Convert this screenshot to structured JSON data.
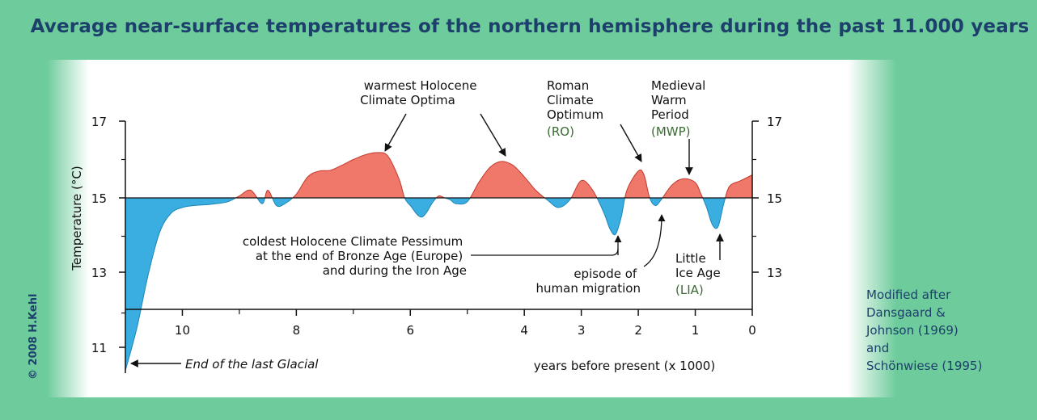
{
  "title": "Average near-surface temperatures of the northern hemisphere during the past 11.000 years",
  "copyright": "© 2008 H.Kehl",
  "source": [
    "Modified after",
    "Dansgaard &",
    "Johnson (1969)",
    "and",
    "Schönwiese (1995)"
  ],
  "colors": {
    "warm": "#f0786a",
    "cold": "#3aaee0",
    "axis": "#111111",
    "background": "#6ecc9c",
    "title": "#1d3f6b"
  },
  "chart_data": {
    "type": "area",
    "ylabel": "Temperature (°C)",
    "xlabel": "years before present (x 1000)",
    "xlim": [
      11,
      0
    ],
    "ylim": [
      10.8,
      17.3
    ],
    "baseline": 15,
    "x_ticks": [
      "10",
      "8",
      "6",
      "4",
      "3",
      "2",
      "1",
      "0"
    ],
    "y_ticks_left": [
      "17",
      "15",
      "13",
      "11"
    ],
    "y_ticks_right": [
      "17",
      "15",
      "13"
    ],
    "x": [
      11.0,
      10.8,
      10.6,
      10.4,
      10.2,
      10.0,
      9.8,
      9.6,
      9.4,
      9.2,
      9.0,
      8.8,
      8.6,
      8.5,
      8.35,
      8.2,
      8.0,
      7.8,
      7.6,
      7.4,
      7.2,
      7.0,
      6.8,
      6.6,
      6.4,
      6.2,
      6.1,
      6.0,
      5.8,
      5.6,
      5.5,
      5.4,
      5.3,
      5.2,
      5.0,
      4.8,
      4.6,
      4.4,
      4.2,
      4.0,
      3.8,
      3.6,
      3.4,
      3.2,
      3.0,
      2.8,
      2.6,
      2.5,
      2.4,
      2.3,
      2.2,
      2.0,
      1.9,
      1.8,
      1.7,
      1.6,
      1.4,
      1.2,
      1.0,
      0.9,
      0.8,
      0.7,
      0.6,
      0.5,
      0.4,
      0.2,
      0.0
    ],
    "y": [
      10.5,
      11.6,
      13.0,
      14.1,
      14.6,
      14.75,
      14.8,
      14.82,
      14.85,
      14.9,
      15.05,
      15.2,
      14.85,
      15.2,
      14.8,
      14.85,
      15.1,
      15.55,
      15.7,
      15.72,
      15.85,
      16.0,
      16.12,
      16.18,
      16.1,
      15.5,
      15.0,
      14.8,
      14.5,
      14.9,
      15.05,
      15.0,
      14.95,
      14.85,
      14.9,
      15.4,
      15.8,
      15.95,
      15.85,
      15.55,
      15.2,
      14.95,
      14.75,
      14.95,
      15.45,
      15.2,
      14.6,
      14.2,
      14.05,
      14.5,
      15.2,
      15.7,
      15.6,
      15.0,
      14.8,
      14.95,
      15.35,
      15.5,
      15.4,
      15.1,
      14.75,
      14.3,
      14.25,
      14.85,
      15.3,
      15.45,
      15.6
    ]
  },
  "annotations": {
    "warmest": [
      "warmest Holocene",
      "Climate Optima"
    ],
    "roman": [
      "Roman",
      "Climate",
      "Optimum",
      "(RO)"
    ],
    "medieval": [
      "Medieval",
      "Warm",
      "Period",
      "(MWP)"
    ],
    "coldest": [
      "coldest Holocene Climate Pessimum",
      "at the end of Bronze Age (Europe)",
      "and during the Iron Age"
    ],
    "migration": [
      "episode of",
      "human migration"
    ],
    "lia": [
      "Little",
      "Ice Age",
      "(LIA)"
    ],
    "glacial": "End of the last Glacial"
  }
}
